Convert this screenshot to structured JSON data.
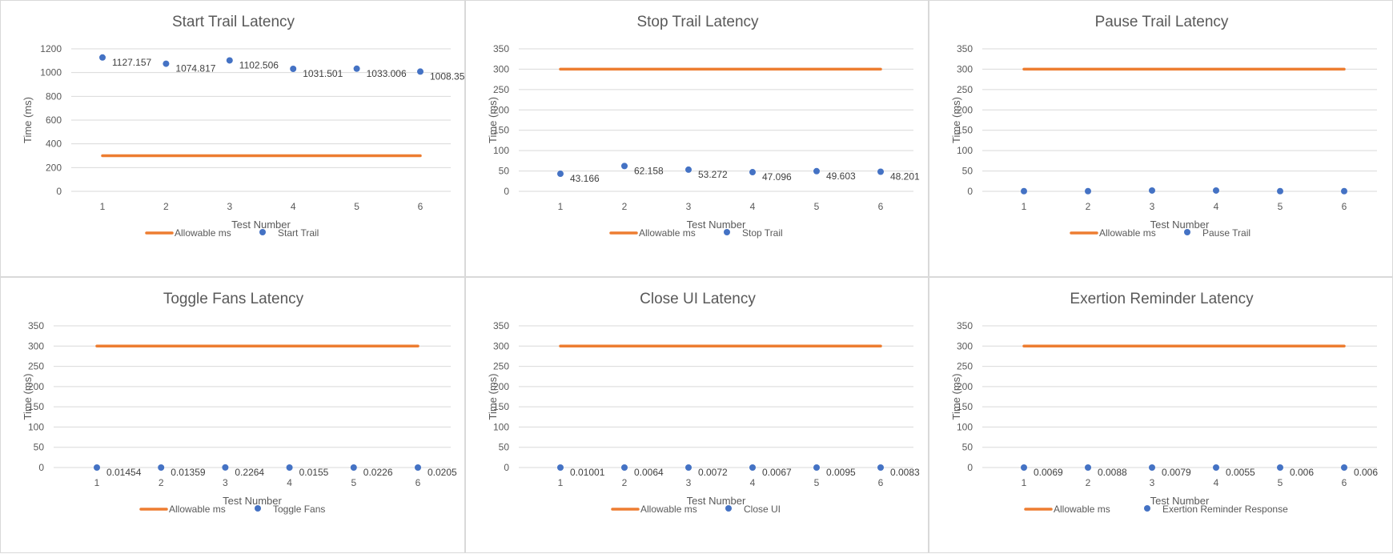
{
  "colors": {
    "allowable": "#ed7d31",
    "series": "#4472c4",
    "grid": "#d9d9d9",
    "text": "#595959"
  },
  "chart_data": [
    {
      "type": "scatter",
      "title": "Start Trail Latency",
      "xlabel": "Test Number",
      "ylabel": "Time (ms)",
      "x": [
        1,
        2,
        3,
        4,
        5,
        6
      ],
      "xticks": [
        "1",
        "2",
        "3",
        "4",
        "5",
        "6"
      ],
      "yticks": [
        "0",
        "200",
        "400",
        "600",
        "800",
        "1000",
        "1200"
      ],
      "ylim": [
        0,
        1200
      ],
      "grid": true,
      "legend": "bottom",
      "series": [
        {
          "name": "Allowable ms",
          "kind": "line",
          "values": [
            300,
            300,
            300,
            300,
            300,
            300
          ]
        },
        {
          "name": "Start Trail",
          "kind": "points",
          "values": [
            1127.157,
            1074.817,
            1102.506,
            1031.501,
            1033.006,
            1008.351
          ],
          "labels": [
            "1127.157",
            "1074.817",
            "1102.506",
            "1031.501",
            "1033.006",
            "1008.351"
          ]
        }
      ]
    },
    {
      "type": "scatter",
      "title": "Stop Trail Latency",
      "xlabel": "Test Number",
      "ylabel": "Time (ms)",
      "x": [
        1,
        2,
        3,
        4,
        5,
        6
      ],
      "xticks": [
        "1",
        "2",
        "3",
        "4",
        "5",
        "6"
      ],
      "yticks": [
        "0",
        "50",
        "100",
        "150",
        "200",
        "250",
        "300",
        "350"
      ],
      "ylim": [
        0,
        350
      ],
      "grid": true,
      "legend": "bottom",
      "series": [
        {
          "name": "Allowable ms",
          "kind": "line",
          "values": [
            300,
            300,
            300,
            300,
            300,
            300
          ]
        },
        {
          "name": "Stop Trail",
          "kind": "points",
          "values": [
            43.166,
            62.158,
            53.272,
            47.096,
            49.603,
            48.201
          ],
          "labels": [
            "43.166",
            "62.158",
            "53.272",
            "47.096",
            "49.603",
            "48.201"
          ]
        }
      ]
    },
    {
      "type": "scatter",
      "title": "Pause Trail Latency",
      "xlabel": "Test Number",
      "ylabel": "Time (ms)",
      "x": [
        1,
        2,
        3,
        4,
        5,
        6
      ],
      "xticks": [
        "1",
        "2",
        "3",
        "4",
        "5",
        "6"
      ],
      "yticks": [
        "0",
        "50",
        "100",
        "150",
        "200",
        "250",
        "300",
        "350"
      ],
      "ylim": [
        0,
        350
      ],
      "grid": true,
      "legend": "bottom",
      "series": [
        {
          "name": "Allowable ms",
          "kind": "line",
          "values": [
            300,
            300,
            300,
            300,
            300,
            300
          ]
        },
        {
          "name": "Pause Trail",
          "kind": "points",
          "values": [
            0.5,
            0.5,
            2,
            2,
            0.5,
            0.5
          ],
          "labels": []
        }
      ]
    },
    {
      "type": "scatter",
      "title": "Toggle Fans Latency",
      "xlabel": "Test Number",
      "ylabel": "Time (ms)",
      "x": [
        1,
        2,
        3,
        4,
        5,
        6
      ],
      "xticks": [
        "1",
        "2",
        "3",
        "4",
        "5",
        "6"
      ],
      "yticks": [
        "0",
        "50",
        "100",
        "150",
        "200",
        "250",
        "300",
        "350"
      ],
      "ylim": [
        0,
        350
      ],
      "grid": true,
      "legend": "bottom",
      "series": [
        {
          "name": "Allowable ms",
          "kind": "line",
          "values": [
            300,
            300,
            300,
            300,
            300,
            300
          ]
        },
        {
          "name": "Toggle Fans",
          "kind": "points",
          "values": [
            0.01454,
            0.01359,
            0.2264,
            0.0155,
            0.0226,
            0.0205
          ],
          "labels": [
            "0.01454",
            "0.01359",
            "0.2264",
            "0.0155",
            "0.0226",
            "0.0205"
          ]
        }
      ]
    },
    {
      "type": "scatter",
      "title": "Close UI Latency",
      "xlabel": "Test Number",
      "ylabel": "Time (ms)",
      "x": [
        1,
        2,
        3,
        4,
        5,
        6
      ],
      "xticks": [
        "1",
        "2",
        "3",
        "4",
        "5",
        "6"
      ],
      "yticks": [
        "0",
        "50",
        "100",
        "150",
        "200",
        "250",
        "300",
        "350"
      ],
      "ylim": [
        0,
        350
      ],
      "grid": true,
      "legend": "bottom",
      "series": [
        {
          "name": "Allowable ms",
          "kind": "line",
          "values": [
            300,
            300,
            300,
            300,
            300,
            300
          ]
        },
        {
          "name": "Close UI",
          "kind": "points",
          "values": [
            0.01001,
            0.0064,
            0.0072,
            0.0067,
            0.0095,
            0.0083
          ],
          "labels": [
            "0.01001",
            "0.0064",
            "0.0072",
            "0.0067",
            "0.0095",
            "0.0083"
          ]
        }
      ]
    },
    {
      "type": "scatter",
      "title": "Exertion Reminder Latency",
      "xlabel": "Test Number",
      "ylabel": "Time (ms)",
      "x": [
        1,
        2,
        3,
        4,
        5,
        6
      ],
      "xticks": [
        "1",
        "2",
        "3",
        "4",
        "5",
        "6"
      ],
      "yticks": [
        "0",
        "50",
        "100",
        "150",
        "200",
        "250",
        "300",
        "350"
      ],
      "ylim": [
        0,
        350
      ],
      "grid": true,
      "legend": "bottom",
      "series": [
        {
          "name": "Allowable ms",
          "kind": "line",
          "values": [
            300,
            300,
            300,
            300,
            300,
            300
          ]
        },
        {
          "name": "Exertion Reminder Response",
          "kind": "points",
          "values": [
            0.0069,
            0.0088,
            0.0079,
            0.0055,
            0.006,
            0.006
          ],
          "labels": [
            "0.0069",
            "0.0088",
            "0.0079",
            "0.0055",
            "0.006",
            "0.006"
          ]
        }
      ]
    }
  ]
}
